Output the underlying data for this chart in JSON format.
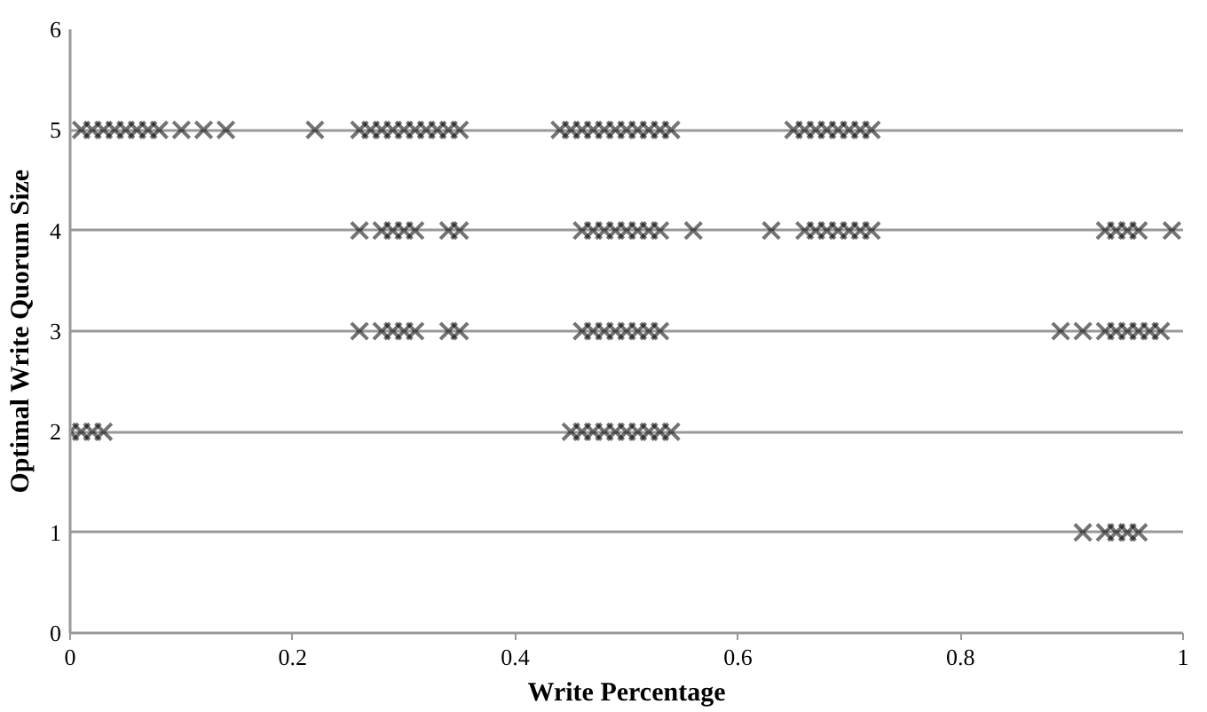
{
  "chart_data": {
    "type": "scatter",
    "xlabel": "Write Percentage",
    "ylabel": "Optimal Write Quorum Size",
    "xlim": [
      0,
      1
    ],
    "xticks": [
      0,
      0.2,
      0.4,
      0.6,
      0.8,
      1
    ],
    "ylim": [
      0,
      6
    ],
    "yticks": [
      0,
      1,
      2,
      3,
      4,
      5,
      6
    ],
    "grid": "y",
    "marker": "cross",
    "series": [
      {
        "color": "#000000",
        "x": [
          0.01,
          0.02,
          0.03,
          0.04,
          0.05,
          0.06,
          0.07,
          0.08,
          0.1,
          0.12,
          0.14,
          0.22,
          0.26,
          0.27,
          0.28,
          0.29,
          0.3,
          0.31,
          0.32,
          0.33,
          0.34,
          0.35,
          0.44,
          0.45,
          0.46,
          0.47,
          0.48,
          0.49,
          0.5,
          0.51,
          0.52,
          0.53,
          0.54,
          0.65,
          0.66,
          0.67,
          0.68,
          0.69,
          0.7,
          0.71,
          0.72,
          0.26,
          0.28,
          0.29,
          0.3,
          0.31,
          0.34,
          0.35,
          0.46,
          0.47,
          0.48,
          0.49,
          0.5,
          0.51,
          0.52,
          0.53,
          0.56,
          0.63,
          0.66,
          0.67,
          0.68,
          0.69,
          0.7,
          0.71,
          0.72,
          0.93,
          0.94,
          0.95,
          0.96,
          0.99,
          0.26,
          0.28,
          0.29,
          0.3,
          0.31,
          0.34,
          0.35,
          0.46,
          0.47,
          0.48,
          0.49,
          0.5,
          0.51,
          0.52,
          0.53,
          0.89,
          0.91,
          0.93,
          0.94,
          0.95,
          0.96,
          0.97,
          0.98,
          0.0,
          0.01,
          0.02,
          0.03,
          0.45,
          0.46,
          0.47,
          0.48,
          0.49,
          0.5,
          0.51,
          0.52,
          0.53,
          0.54,
          0.91,
          0.93,
          0.94,
          0.95,
          0.96
        ],
        "values": [
          5,
          5,
          5,
          5,
          5,
          5,
          5,
          5,
          5,
          5,
          5,
          5,
          5,
          5,
          5,
          5,
          5,
          5,
          5,
          5,
          5,
          5,
          5,
          5,
          5,
          5,
          5,
          5,
          5,
          5,
          5,
          5,
          5,
          5,
          5,
          5,
          5,
          5,
          5,
          5,
          5,
          4,
          4,
          4,
          4,
          4,
          4,
          4,
          4,
          4,
          4,
          4,
          4,
          4,
          4,
          4,
          4,
          4,
          4,
          4,
          4,
          4,
          4,
          4,
          4,
          4,
          4,
          4,
          4,
          4,
          3,
          3,
          3,
          3,
          3,
          3,
          3,
          3,
          3,
          3,
          3,
          3,
          3,
          3,
          3,
          3,
          3,
          3,
          3,
          3,
          3,
          3,
          3,
          2,
          2,
          2,
          2,
          2,
          2,
          2,
          2,
          2,
          2,
          2,
          2,
          2,
          2,
          1,
          1,
          1,
          1,
          1
        ]
      }
    ]
  }
}
